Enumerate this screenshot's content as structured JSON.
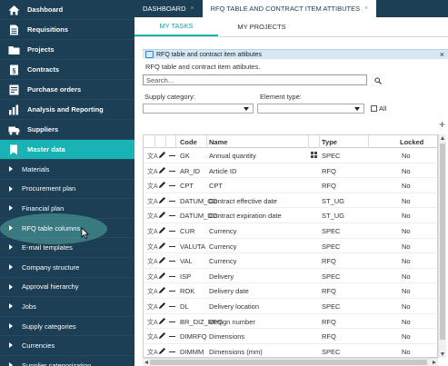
{
  "sidebar": {
    "main_items": [
      {
        "label": "Dashboard",
        "icon": "home-icon"
      },
      {
        "label": "Requisitions",
        "icon": "document-icon"
      },
      {
        "label": "Projects",
        "icon": "folder-icon"
      },
      {
        "label": "Contracts",
        "icon": "contract-icon"
      },
      {
        "label": "Purchase orders",
        "icon": "cart-icon"
      },
      {
        "label": "Analysis and Reporting",
        "icon": "chart-icon"
      },
      {
        "label": "Suppliers",
        "icon": "truck-icon"
      },
      {
        "label": "Master data",
        "icon": "bookmark-icon"
      }
    ],
    "sub_items": [
      "Materials",
      "Procurement plan",
      "Financial plan",
      "RFQ table columns",
      "E-mail templates",
      "Company structure",
      "Approval hierarchy",
      "Jobs",
      "Supply categories",
      "Currencies",
      "Supplier categorization"
    ],
    "active_main": "Master data",
    "hovered_sub": "RFQ table columns"
  },
  "top_tabs": [
    {
      "label": "DASHBOARD",
      "close": "×"
    },
    {
      "label": "RFQ TABLE AND CONTRACT ITEM ATTIBUTES",
      "close": "×"
    }
  ],
  "sub_tabs": [
    "MY TASKS",
    "MY PROJECTS"
  ],
  "panel": {
    "title": "RFQ table and contract item attibutes",
    "close": "×",
    "subtitle": "RFQ table and contract item attibutes.",
    "search_placeholder": "Search...",
    "supply_category_label": "Supply category:",
    "element_type_label": "Element type:",
    "all_label": "All",
    "add_label": "+"
  },
  "table": {
    "columns": {
      "code": "Code",
      "name": "Name",
      "type": "Type",
      "locked": "Locked"
    },
    "row_actions": {
      "translate": "文A"
    },
    "rows": [
      {
        "code": "GK",
        "name": "Annual quantity",
        "type": "SPEC",
        "locked": "No",
        "grid": true
      },
      {
        "code": "AR_ID",
        "name": "Article ID",
        "type": "RFQ",
        "locked": "No"
      },
      {
        "code": "CPT",
        "name": "CPT",
        "type": "RFQ",
        "locked": "No"
      },
      {
        "code": "DATUM_OD",
        "name": "Contract effective date",
        "type": "ST_UG",
        "locked": "No"
      },
      {
        "code": "DATUM_DO",
        "name": "Contract expiration date",
        "type": "ST_UG",
        "locked": "No"
      },
      {
        "code": "CUR",
        "name": "Currency",
        "type": "SPEC",
        "locked": "No"
      },
      {
        "code": "VALUTA",
        "name": "Currency",
        "type": "SPEC",
        "locked": "No"
      },
      {
        "code": "VAL",
        "name": "Currency",
        "type": "RFQ",
        "locked": "No"
      },
      {
        "code": "ISP",
        "name": "Delivery",
        "type": "SPEC",
        "locked": "No"
      },
      {
        "code": "ROK",
        "name": "Delivery date",
        "type": "RFQ",
        "locked": "No"
      },
      {
        "code": "DL",
        "name": "Delivery location",
        "type": "SPEC",
        "locked": "No"
      },
      {
        "code": "BR_DIZ_RFQ",
        "name": "Design number",
        "type": "RFQ",
        "locked": "No"
      },
      {
        "code": "DIMRFQ",
        "name": "Dimensions",
        "type": "RFQ",
        "locked": "No"
      },
      {
        "code": "DIMMM",
        "name": "Dimensions (mm)",
        "type": "SPEC",
        "locked": "No"
      }
    ]
  }
}
